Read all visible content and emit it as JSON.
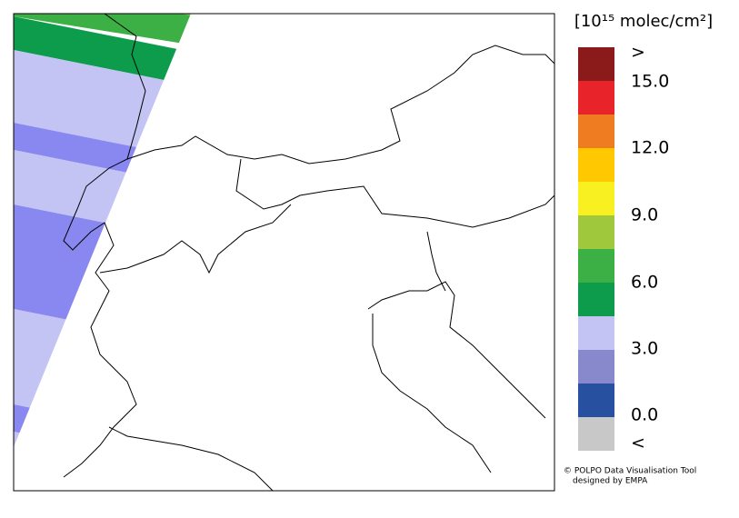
{
  "legend": {
    "title": "[10¹⁵ molec/cm²]",
    "colors": [
      "#8b1a1a",
      "#e8242a",
      "#f07c22",
      "#ffc800",
      "#f8f020",
      "#a0c83c",
      "#3cb044",
      "#0c9c4c",
      "#c4c4f4",
      "#8888cc",
      "#2850a0",
      "#c8c8c8"
    ],
    "labels": [
      ">",
      "15.0",
      "12.0",
      "9.0",
      "6.0",
      "3.0",
      "0.0",
      "<"
    ]
  },
  "credits": {
    "line1": "© POLPO Data Visualisation Tool",
    "line2": "designed by EMPA"
  }
}
